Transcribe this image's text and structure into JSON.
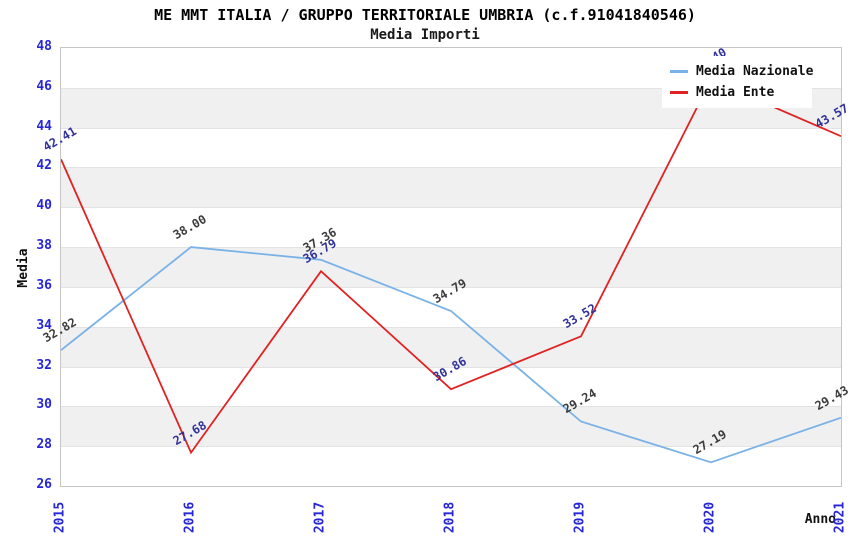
{
  "chart_data": {
    "type": "line",
    "title": "ME MMT ITALIA / GRUPPO TERRITORIALE UMBRIA (c.f.91041840546)",
    "subtitle": "Media Importi",
    "xlabel": "Anno",
    "ylabel": "Media",
    "ylim": [
      26,
      48
    ],
    "y_tick_step": 2,
    "y_tick_labels": [
      "26",
      "28",
      "30",
      "32",
      "34",
      "36",
      "38",
      "40",
      "42",
      "44",
      "46",
      "48"
    ],
    "categories": [
      "2015",
      "2016",
      "2017",
      "2018",
      "2019",
      "2020",
      "2021"
    ],
    "series": [
      {
        "name": "Media Nazionale",
        "color": "#79b2e8",
        "label_color": "#3c3c3c",
        "values": [
          32.82,
          38.0,
          37.36,
          34.79,
          29.24,
          27.19,
          29.43
        ]
      },
      {
        "name": "Media Ente",
        "color": "#e02322",
        "label_color": "#323299",
        "values": [
          42.41,
          27.68,
          36.79,
          30.86,
          33.52,
          46.4,
          43.57
        ]
      }
    ],
    "legend_position": "top-right",
    "grid": "alternating-horizontal-bands",
    "band_color": "#f0f0f0",
    "tick_color": "#2626d8"
  }
}
